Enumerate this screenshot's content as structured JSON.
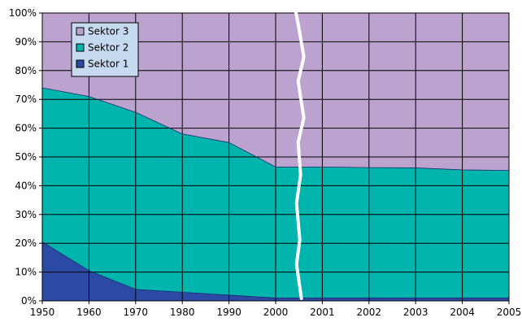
{
  "chart_data": {
    "type": "area",
    "stacked": true,
    "percent": true,
    "categories": [
      "1950",
      "1960",
      "1970",
      "1980",
      "1990",
      "2000",
      "2001",
      "2002",
      "2003",
      "2004",
      "2005"
    ],
    "y_tick_labels": [
      "0%",
      "10%",
      "20%",
      "30%",
      "40%",
      "50%",
      "60%",
      "70%",
      "80%",
      "90%",
      "100%"
    ],
    "ylim": [
      0,
      100
    ],
    "grid": true,
    "axis_break_between": [
      "2000",
      "2001"
    ],
    "legend_position": "top-left",
    "series": [
      {
        "name": "Sektor 1",
        "color": "#2b4aa6",
        "values": [
          20.5,
          10.5,
          4,
          3,
          2,
          1,
          1,
          1,
          1,
          1,
          1
        ]
      },
      {
        "name": "Sektor 2",
        "color": "#00b5ad",
        "values": [
          53.5,
          60.5,
          61.5,
          55,
          53,
          45.5,
          45.5,
          45.3,
          45.2,
          44.5,
          44.3
        ]
      },
      {
        "name": "Sektor 3",
        "color": "#bba2cf",
        "values": [
          26,
          29,
          34.5,
          42,
          45,
          53.5,
          53.5,
          53.7,
          53.8,
          54.5,
          54.7
        ]
      }
    ],
    "legend_order": [
      "Sektor 3",
      "Sektor 2",
      "Sektor 1"
    ]
  }
}
